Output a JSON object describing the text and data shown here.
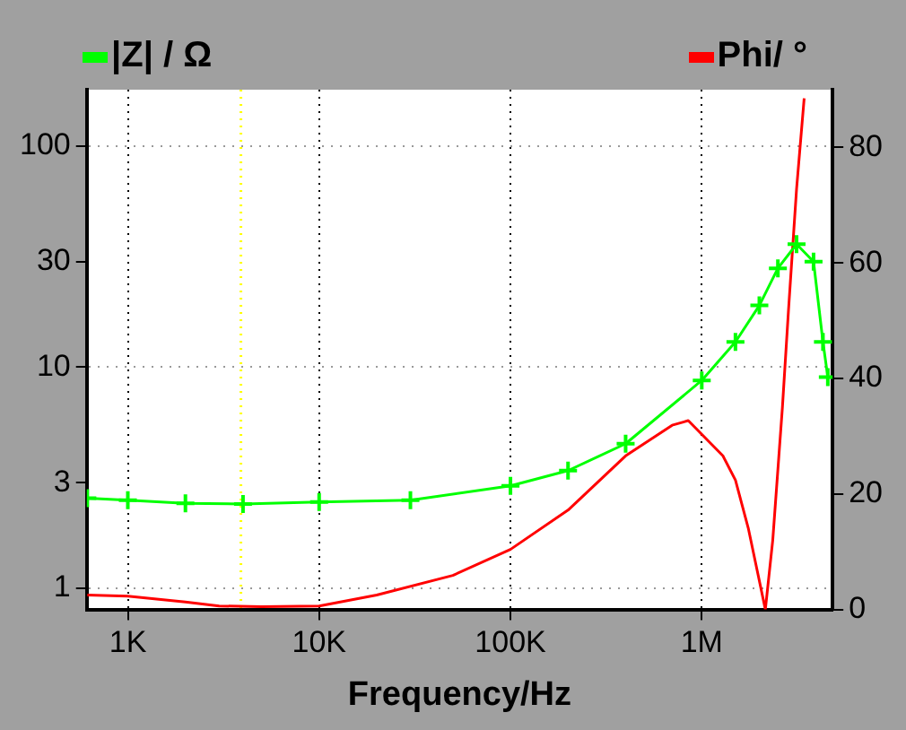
{
  "chart_data": {
    "type": "line",
    "xlabel": "Frequency/Hz",
    "log": "xy",
    "legend": "top",
    "grid": true,
    "xlim": [
      610,
      4830000
    ],
    "xticks": [
      {
        "value": 1000,
        "label": "1K"
      },
      {
        "value": 10000,
        "label": "10K"
      },
      {
        "value": 100000,
        "label": "100K"
      },
      {
        "value": 1000000,
        "label": "1M"
      }
    ],
    "ylim": [
      0.8,
      180
    ],
    "yticks": [
      1,
      3,
      10,
      30,
      100
    ],
    "y2lim": [
      0,
      90
    ],
    "y2ticks": [
      0,
      20,
      40,
      60,
      80
    ],
    "ref_lines": [
      {
        "axis": "x",
        "value": 3900,
        "color": "#ffff00",
        "line_style": "dotted"
      }
    ],
    "series": [
      {
        "name": "|Z| / Ω",
        "color": "#00ff00",
        "marker": "cross",
        "x": [
          614,
          1000,
          2000,
          4000,
          10000,
          30000,
          100000,
          200000,
          400000,
          1000000,
          1500000,
          2000000,
          2500000,
          3130000,
          3840000,
          4300000,
          4560000
        ],
        "values": [
          2.55,
          2.5,
          2.42,
          2.4,
          2.45,
          2.5,
          2.9,
          3.4,
          4.5,
          8.7,
          13,
          19,
          28,
          36,
          30,
          13,
          9
        ]
      },
      {
        "name": "Phi/ °",
        "color": "#ff0000",
        "marker": "none",
        "axis": "y2",
        "x": [
          614,
          1000,
          2000,
          3000,
          5000,
          10000,
          20000,
          50000,
          100000,
          200000,
          400000,
          700000,
          850000,
          1290000,
          1500000,
          1750000,
          1950000,
          2150000,
          2350000,
          2640000,
          2840000,
          3130000,
          3430000
        ],
        "values": [
          2.5,
          2.3,
          1.3,
          0.6,
          0.5,
          0.6,
          2.5,
          5.9,
          10.4,
          17.2,
          26.6,
          31.9,
          32.7,
          26.6,
          22.4,
          14.1,
          6.7,
          0,
          12,
          35,
          51.8,
          72.8,
          88.5
        ]
      }
    ]
  }
}
